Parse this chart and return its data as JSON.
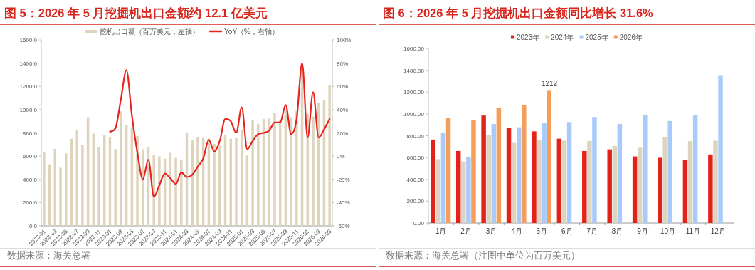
{
  "chart_data": [
    {
      "type": "bar",
      "title": "图 5：2026 年 5 月挖掘机出口金额约 12.1 亿美元",
      "categories": [
        "2022-01",
        null,
        "2022-03",
        null,
        "2022-05",
        null,
        "2022-07",
        null,
        "2022-09",
        null,
        "2022-11",
        null,
        "2023-01",
        null,
        "2023-03",
        null,
        "2023-05",
        null,
        "2023-07",
        null,
        "2023-09",
        null,
        "2023-11",
        null,
        "2024-01",
        null,
        "2024-03",
        null,
        "2024-05",
        null,
        "2024-07",
        null,
        "2024-09",
        null,
        "2024-11",
        null,
        "2025-01",
        null,
        "2025-03",
        null,
        "2025-05",
        null,
        "2025-07",
        null,
        "2025-09",
        null,
        "2025-11",
        null,
        "2026-01",
        null,
        "2026-03",
        null,
        "2026-05"
      ],
      "series": [
        {
          "name": "挖机出口额（百万美元，左轴）",
          "color": "#ded4bc",
          "values": [
            631,
            529,
            663,
            500,
            624,
            749,
            820,
            696,
            935,
            794,
            676,
            778,
            765,
            660,
            985,
            870,
            840,
            773,
            660,
            675,
            610,
            598,
            578,
            628,
            585,
            565,
            805,
            735,
            765,
            755,
            752,
            705,
            690,
            785,
            750,
            755,
            830,
            605,
            908,
            878,
            920,
            925,
            972,
            908,
            992,
            935,
            990,
            1355,
            965,
            940,
            1055,
            1080,
            1212
          ]
        },
        {
          "name": "YoY（%，右轴）",
          "type": "line",
          "axis": "y2",
          "color": "#e8231e",
          "values": [
            null,
            null,
            null,
            null,
            null,
            null,
            null,
            null,
            null,
            null,
            null,
            null,
            21,
            24,
            49,
            74,
            35,
            3,
            -20,
            -3,
            -35,
            -25,
            -15,
            -19,
            -24,
            -14,
            -18,
            -16,
            -9,
            -2,
            14,
            4,
            13,
            32,
            30,
            20,
            42,
            6,
            13,
            19,
            20,
            22,
            29,
            29,
            44,
            19,
            32,
            80,
            16,
            55,
            16,
            23,
            32
          ]
        }
      ],
      "ylim": [
        0,
        1600
      ],
      "yticks": [
        {
          "value": 0,
          "label": "0.0"
        },
        {
          "value": 200,
          "label": "200.0"
        },
        {
          "value": 400,
          "label": "400.0"
        },
        {
          "value": 600,
          "label": "600.0"
        },
        {
          "value": 800,
          "label": "800.0"
        },
        {
          "value": 1000,
          "label": "1000.0"
        },
        {
          "value": 1200,
          "label": "1200.0"
        },
        {
          "value": 1400,
          "label": "1400.0"
        },
        {
          "value": 1600,
          "label": "1600.0"
        }
      ],
      "y2lim": [
        -60,
        100
      ],
      "y2ticks": [
        {
          "value": -60,
          "label": "-60%"
        },
        {
          "value": -40,
          "label": "-40%"
        },
        {
          "value": -20,
          "label": "-20%"
        },
        {
          "value": 0,
          "label": "0%"
        },
        {
          "value": 20,
          "label": "20%"
        },
        {
          "value": 40,
          "label": "40%"
        },
        {
          "value": 60,
          "label": "60%"
        },
        {
          "value": 80,
          "label": "80%"
        },
        {
          "value": 100,
          "label": "100%"
        }
      ],
      "legend": "top",
      "annotations": [
        "数据来源：海关总署"
      ]
    },
    {
      "type": "bar",
      "title": "图 6：2026 年 5 月挖掘机出口金额同比增长 31.6%",
      "categories": [
        "1月",
        "2月",
        "3月",
        "4月",
        "5月",
        "6月",
        "7月",
        "8月",
        "9月",
        "10月",
        "11月",
        "12月"
      ],
      "series": [
        {
          "name": "2023年",
          "color": "#e2231a",
          "values": [
            765,
            660,
            985,
            870,
            840,
            773,
            660,
            675,
            610,
            598,
            578,
            628
          ]
        },
        {
          "name": "2024年",
          "color": "#ded5c0",
          "values": [
            585,
            565,
            805,
            735,
            765,
            755,
            752,
            705,
            690,
            785,
            750,
            755
          ]
        },
        {
          "name": "2025年",
          "color": "#a9cbfa",
          "values": [
            830,
            605,
            908,
            878,
            920,
            925,
            972,
            908,
            992,
            935,
            990,
            1355
          ]
        },
        {
          "name": "2026年",
          "color": "#f79d5a",
          "values": [
            965,
            940,
            1055,
            1080,
            1212,
            null,
            null,
            null,
            null,
            null,
            null,
            null
          ],
          "value_labels": [
            null,
            null,
            null,
            null,
            "1212",
            null,
            null,
            null,
            null,
            null,
            null,
            null
          ]
        }
      ],
      "ylim": [
        0,
        1600
      ],
      "yticks": [
        {
          "value": 0,
          "label": "0.00"
        },
        {
          "value": 200,
          "label": "200.00"
        },
        {
          "value": 400,
          "label": "400.00"
        },
        {
          "value": 600,
          "label": "600.00"
        },
        {
          "value": 800,
          "label": "800.00"
        },
        {
          "value": 1000,
          "label": "1000.00"
        },
        {
          "value": 1200,
          "label": "1200.00"
        },
        {
          "value": 1400,
          "label": "1400.00"
        },
        {
          "value": 1600,
          "label": "1600.00"
        }
      ],
      "legend": "top",
      "annotations": [
        "数据来源：海关总署（注图中单位为百万美元）"
      ]
    }
  ]
}
